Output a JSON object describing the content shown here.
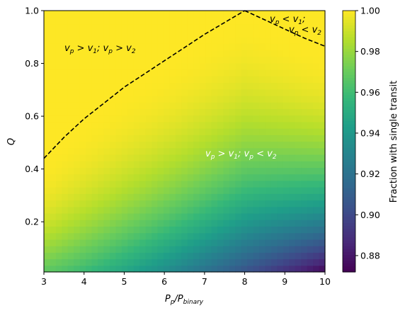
{
  "chart_data": {
    "type": "heatmap",
    "x_range": [
      3,
      10
    ],
    "y_range": [
      0.01,
      1.0
    ],
    "xticks": [
      3,
      4,
      5,
      6,
      7,
      8,
      9,
      10
    ],
    "yticks": [
      0.2,
      0.4,
      0.6,
      0.8,
      1.0
    ],
    "xtick_labels": [
      "3",
      "4",
      "5",
      "6",
      "7",
      "8",
      "9",
      "10"
    ],
    "ytick_labels": [
      "0.2",
      "0.4",
      "0.6",
      "0.8",
      "1.0"
    ],
    "xlabel_base": "P",
    "xlabel_sub1": "p",
    "xlabel_sep": "/P",
    "xlabel_sub2": "binary",
    "ylabel": "Q",
    "colorbar": {
      "label": "Fraction with single transit",
      "range": [
        0.872,
        1.0
      ],
      "ticks": [
        0.88,
        0.9,
        0.92,
        0.94,
        0.96,
        0.98,
        1.0
      ],
      "tick_labels": [
        "0.88",
        "0.90",
        "0.92",
        "0.94",
        "0.96",
        "0.98",
        "1.00"
      ],
      "colormap": "viridis"
    },
    "grid": {
      "nx": 47,
      "ny": 40
    },
    "curves": [
      {
        "style": "dashed",
        "points": [
          [
            3,
            0.44
          ],
          [
            3.5,
            0.52
          ],
          [
            4,
            0.59
          ],
          [
            4.5,
            0.65
          ],
          [
            5,
            0.71
          ],
          [
            5.5,
            0.76
          ],
          [
            6,
            0.81
          ],
          [
            6.5,
            0.86
          ],
          [
            7,
            0.91
          ],
          [
            7.5,
            0.955
          ],
          [
            8,
            1.0
          ]
        ]
      },
      {
        "style": "dashed",
        "points": [
          [
            8,
            1.0
          ],
          [
            8.5,
            0.965
          ],
          [
            9,
            0.93
          ],
          [
            9.5,
            0.895
          ],
          [
            10,
            0.865
          ]
        ]
      }
    ],
    "annotations": [
      {
        "text_parts": [
          "v",
          "p",
          " > v",
          "1",
          "; v",
          "p",
          " > v",
          "2"
        ],
        "color": "#000000"
      },
      {
        "text_parts": [
          "v",
          "p",
          " > v",
          "1",
          "; v",
          "p",
          " < v",
          "2"
        ],
        "color": "#ffffff"
      },
      {
        "line1": [
          "v",
          "p",
          " < v",
          "1",
          ";"
        ],
        "line2": [
          "v",
          "p",
          " < v",
          "2"
        ],
        "color": "#000000"
      }
    ],
    "colors": {
      "curve": "#000000",
      "background": "#ffffff"
    }
  }
}
